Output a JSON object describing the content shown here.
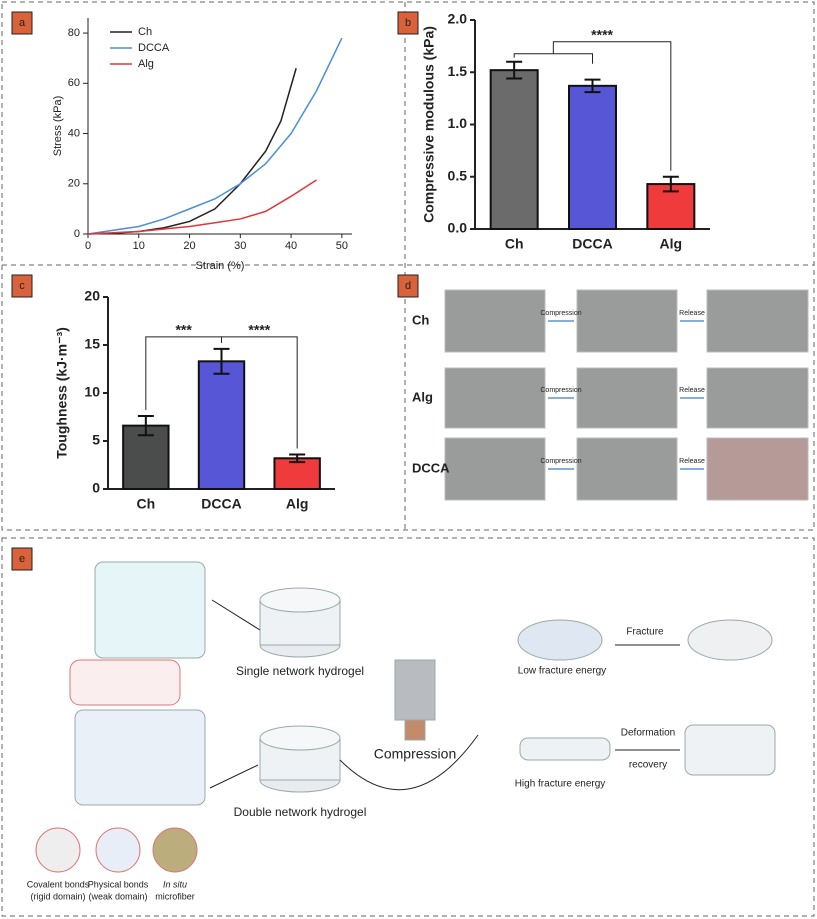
{
  "panel_labels": [
    "a",
    "b",
    "c",
    "d",
    "e"
  ],
  "chart_data": [
    {
      "type": "line",
      "xlabel": "Strain (%)",
      "ylabel": "Stress (kPa)",
      "xlim": [
        0,
        52
      ],
      "ylim": [
        0,
        86
      ],
      "xticks": [
        0,
        10,
        20,
        30,
        40,
        50
      ],
      "yticks": [
        0,
        20,
        40,
        60,
        80
      ],
      "legend": "upper left",
      "series": [
        {
          "name": "Ch",
          "color": "#222222",
          "x": [
            0,
            5,
            10,
            15,
            20,
            25,
            30,
            35,
            38,
            41
          ],
          "values": [
            0,
            0.3,
            1,
            2.5,
            5,
            10,
            20,
            33,
            45,
            66
          ]
        },
        {
          "name": "DCCA",
          "color": "#4a8fd8",
          "x": [
            0,
            5,
            10,
            15,
            20,
            25,
            30,
            35,
            40,
            45,
            50
          ],
          "values": [
            0,
            1.5,
            3,
            6,
            10,
            14,
            20,
            28,
            40,
            57,
            78
          ]
        },
        {
          "name": "Alg",
          "color": "#e0363a",
          "x": [
            0,
            10,
            15,
            20,
            25,
            30,
            35,
            40,
            45
          ],
          "values": [
            0,
            1,
            2,
            3,
            4.5,
            6,
            9,
            15,
            21.5
          ]
        }
      ]
    },
    {
      "type": "bar",
      "ylabel": "Compressive modulous (kPa)",
      "categories": [
        "Ch",
        "DCCA",
        "Alg"
      ],
      "values": [
        1.52,
        1.37,
        0.43
      ],
      "errors": [
        0.08,
        0.06,
        0.07
      ],
      "colors": [
        "#6b6b6b",
        "#5656d6",
        "#ef3b3b"
      ],
      "ylim": [
        0,
        2.0
      ],
      "yticks": [
        {
          "value": 0,
          "label": "0.0"
        },
        0.5,
        {
          "value": 1,
          "label": "1.0"
        },
        1.5,
        {
          "value": 2,
          "label": "2.0"
        }
      ],
      "annotations": [
        "****"
      ]
    },
    {
      "type": "bar",
      "ylabel": "Toughness (kJ·m⁻³)",
      "categories": [
        "Ch",
        "DCCA",
        "Alg"
      ],
      "values": [
        6.6,
        13.3,
        3.2
      ],
      "errors": [
        1.0,
        1.3,
        0.4
      ],
      "colors": [
        "#4a4d4c",
        "#5656d6",
        "#ef3b3b"
      ],
      "ylim": [
        0,
        20
      ],
      "yticks": [
        0,
        5,
        10,
        15,
        20
      ],
      "annotations": [
        "***",
        "****"
      ]
    }
  ],
  "panel_d": {
    "rows": [
      "Ch",
      "Alg",
      "DCCA"
    ],
    "steps": [
      "Compression",
      "Release",
      "Compression",
      "Release",
      "Compression",
      "Release"
    ]
  },
  "panel_e": {
    "single": "Single network hydrogel",
    "double": "Double network hydrogel",
    "compression": "Compression",
    "low": "Low fracture energy",
    "fracture": "Fracture",
    "high": "High fracture energy",
    "deformation": "Deformation",
    "recovery": "recovery",
    "domains": [
      [
        "Covalent bonds",
        "(rigid domain)"
      ],
      [
        "Physical bonds",
        "(weak domain)"
      ],
      [
        "In situ",
        "microfiber"
      ]
    ]
  }
}
